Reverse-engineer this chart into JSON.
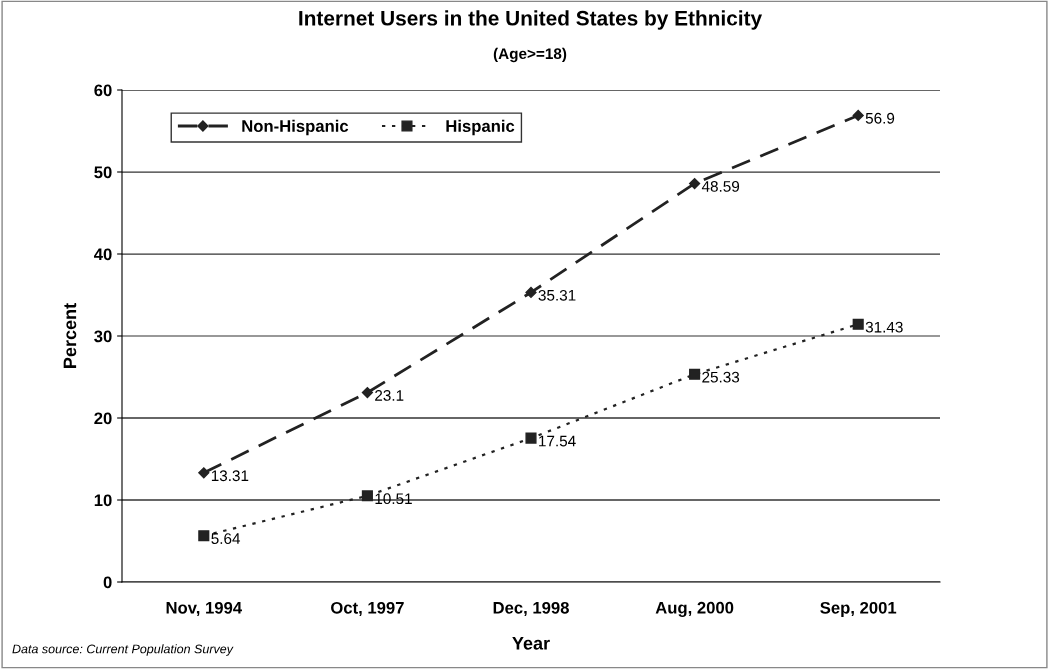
{
  "chart_data": {
    "type": "line",
    "title": "Internet Users in the United States by Ethnicity",
    "subtitle": "(Age>=18)",
    "xlabel": "Year",
    "ylabel": "Percent",
    "categories": [
      "Nov, 1994",
      "Oct, 1997",
      "Dec, 1998",
      "Aug, 2000",
      "Sep, 2001"
    ],
    "series": [
      {
        "name": "Non-Hispanic",
        "color": "#222222",
        "values": [
          13.31,
          23.1,
          35.31,
          48.59,
          56.9
        ],
        "marker": "diamond",
        "line_style": "dashed"
      },
      {
        "name": "Hispanic",
        "color": "#222222",
        "values": [
          5.64,
          10.51,
          17.54,
          25.33,
          31.43
        ],
        "marker": "square",
        "line_style": "dotted"
      }
    ],
    "ylim": [
      0,
      60
    ],
    "yticks": [
      0,
      10,
      20,
      30,
      40,
      50,
      60
    ],
    "grid": "y",
    "legend": "top left",
    "data_labels": true,
    "annotations": [
      "Data source: Current Population Survey"
    ]
  }
}
